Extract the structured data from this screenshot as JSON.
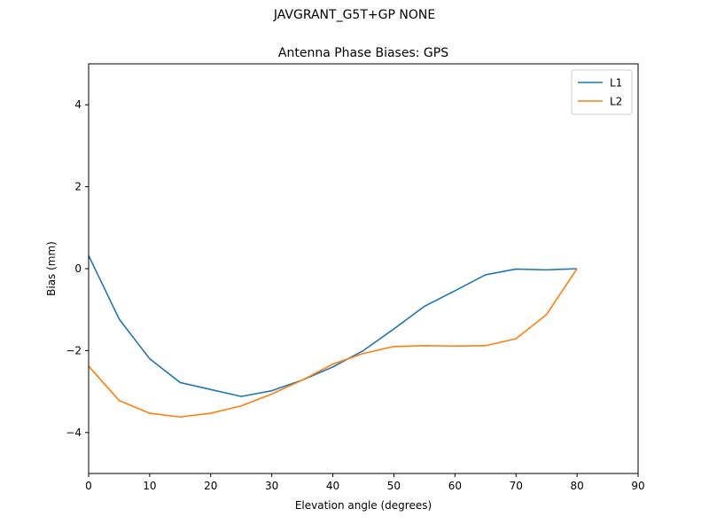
{
  "figure": {
    "suptitle": "JAVGRANT_G5T+GP NONE"
  },
  "chart_data": {
    "type": "line",
    "title": "Antenna Phase Biases: GPS",
    "xlabel": "Elevation angle (degrees)",
    "ylabel": "Bias (mm)",
    "xlim": [
      0,
      90
    ],
    "ylim": [
      -5,
      5
    ],
    "xticks": [
      0,
      10,
      20,
      30,
      40,
      50,
      60,
      70,
      80,
      90
    ],
    "yticks": [
      -4,
      -2,
      0,
      2,
      4
    ],
    "xtick_labels": [
      "0",
      "10",
      "20",
      "30",
      "40",
      "50",
      "60",
      "70",
      "80",
      "90"
    ],
    "ytick_labels": [
      "−4",
      "−2",
      "0",
      "2",
      "4"
    ],
    "grid": false,
    "legend_position": "top-right",
    "x": [
      0,
      5,
      10,
      15,
      20,
      25,
      30,
      35,
      40,
      45,
      50,
      55,
      60,
      65,
      70,
      75,
      80
    ],
    "series": [
      {
        "name": "L1",
        "color": "#1f77b4",
        "values": [
          0.32,
          -1.23,
          -2.2,
          -2.78,
          -2.95,
          -3.12,
          -2.98,
          -2.72,
          -2.4,
          -2.0,
          -1.47,
          -0.92,
          -0.54,
          -0.15,
          -0.01,
          -0.03,
          0.0
        ]
      },
      {
        "name": "L2",
        "color": "#ff7f0e",
        "values": [
          -2.38,
          -3.22,
          -3.53,
          -3.62,
          -3.53,
          -3.35,
          -3.06,
          -2.72,
          -2.33,
          -2.07,
          -1.9,
          -1.88,
          -1.89,
          -1.88,
          -1.71,
          -1.12,
          0.0
        ]
      }
    ]
  }
}
